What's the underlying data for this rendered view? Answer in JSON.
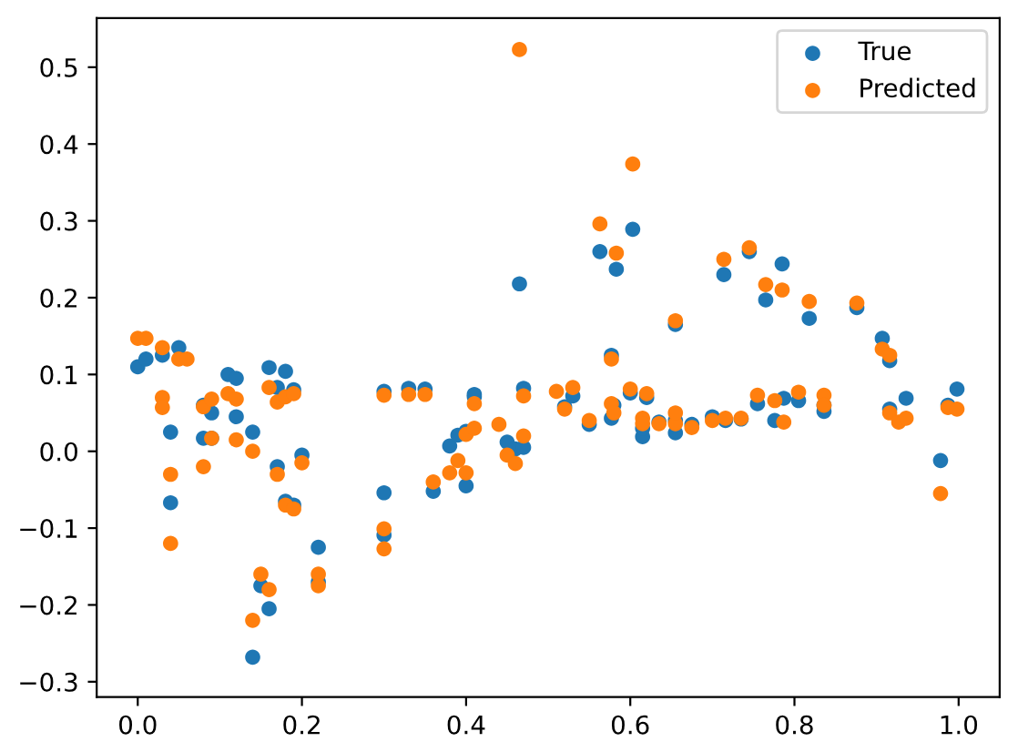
{
  "chart_data": {
    "type": "scatter",
    "x": [
      0.0,
      0.01,
      0.03,
      0.03,
      0.03,
      0.04,
      0.04,
      0.05,
      0.06,
      0.08,
      0.08,
      0.09,
      0.09,
      0.11,
      0.12,
      0.12,
      0.14,
      0.14,
      0.15,
      0.16,
      0.16,
      0.17,
      0.17,
      0.18,
      0.18,
      0.19,
      0.19,
      0.2,
      0.22,
      0.22,
      0.3,
      0.3,
      0.3,
      0.33,
      0.35,
      0.36,
      0.38,
      0.39,
      0.4,
      0.4,
      0.41,
      0.41,
      0.44,
      0.45,
      0.46,
      0.465,
      0.47,
      0.47,
      0.51,
      0.52,
      0.53,
      0.55,
      0.563,
      0.577,
      0.577,
      0.58,
      0.583,
      0.6,
      0.603,
      0.615,
      0.615,
      0.62,
      0.635,
      0.655,
      0.655,
      0.655,
      0.675,
      0.7,
      0.714,
      0.716,
      0.735,
      0.745,
      0.755,
      0.765,
      0.776,
      0.785,
      0.787,
      0.805,
      0.818,
      0.836,
      0.836,
      0.876,
      0.907,
      0.916,
      0.916,
      0.927,
      0.936,
      0.978,
      0.987,
      0.998
    ],
    "series": [
      {
        "name": "True",
        "color": "#1f77b4",
        "values": [
          0.11,
          0.12,
          0.125,
          null,
          null,
          0.025,
          -0.067,
          0.135,
          null,
          0.06,
          0.017,
          0.05,
          0.017,
          0.1,
          0.095,
          0.045,
          0.025,
          -0.268,
          -0.175,
          0.109,
          -0.205,
          0.083,
          -0.02,
          0.104,
          -0.065,
          0.08,
          -0.07,
          -0.005,
          -0.125,
          -0.17,
          -0.054,
          -0.109,
          0.078,
          0.082,
          0.081,
          -0.052,
          0.007,
          0.021,
          -0.045,
          0.026,
          0.071,
          0.074,
          null,
          0.012,
          0.003,
          0.218,
          0.005,
          0.082,
          null,
          0.058,
          0.072,
          0.035,
          0.26,
          0.125,
          0.043,
          0.06,
          0.237,
          0.076,
          0.289,
          0.019,
          0.03,
          0.07,
          0.038,
          0.024,
          0.04,
          0.165,
          0.035,
          0.045,
          0.23,
          0.04,
          0.042,
          0.26,
          0.062,
          0.197,
          0.04,
          0.244,
          0.069,
          0.066,
          0.173,
          0.052,
          0.06,
          0.187,
          0.147,
          0.118,
          0.055,
          null,
          0.069,
          -0.012,
          0.06,
          0.081
        ]
      },
      {
        "name": "Predicted",
        "color": "#ff7f0e",
        "values": [
          0.147,
          0.147,
          0.135,
          0.07,
          0.057,
          -0.03,
          -0.12,
          0.12,
          0.12,
          0.058,
          -0.02,
          0.068,
          0.017,
          0.075,
          0.068,
          0.015,
          0.0,
          -0.22,
          -0.16,
          0.083,
          -0.18,
          0.064,
          -0.03,
          0.071,
          -0.07,
          0.075,
          -0.075,
          -0.015,
          -0.16,
          -0.175,
          -0.101,
          -0.127,
          0.073,
          0.074,
          0.074,
          -0.04,
          -0.028,
          -0.012,
          -0.028,
          0.022,
          0.03,
          0.062,
          0.035,
          -0.005,
          -0.016,
          0.523,
          0.02,
          0.072,
          0.078,
          0.055,
          0.083,
          0.04,
          0.296,
          0.12,
          0.062,
          0.05,
          0.258,
          0.081,
          0.374,
          0.043,
          0.036,
          0.075,
          0.036,
          0.036,
          0.05,
          0.17,
          0.031,
          0.04,
          0.25,
          0.043,
          0.043,
          0.265,
          0.073,
          0.217,
          0.066,
          0.21,
          0.038,
          0.077,
          0.195,
          0.073,
          0.06,
          0.193,
          0.133,
          0.125,
          0.05,
          0.038,
          0.043,
          -0.055,
          0.057,
          0.055
        ]
      }
    ],
    "xlim": [
      -0.05,
      1.05
    ],
    "ylim": [
      -0.32,
      0.564
    ],
    "xticks": [
      {
        "value": 0,
        "label": "0.0"
      },
      0.2,
      0.4,
      0.6,
      0.8,
      {
        "value": 1,
        "label": "1.0"
      }
    ],
    "yticks": [
      -0.3,
      -0.2,
      -0.1,
      {
        "value": 0,
        "label": "0.0"
      },
      0.1,
      0.2,
      0.3,
      0.4,
      0.5
    ],
    "marker": "circle",
    "legend": "top right",
    "grid": false
  }
}
